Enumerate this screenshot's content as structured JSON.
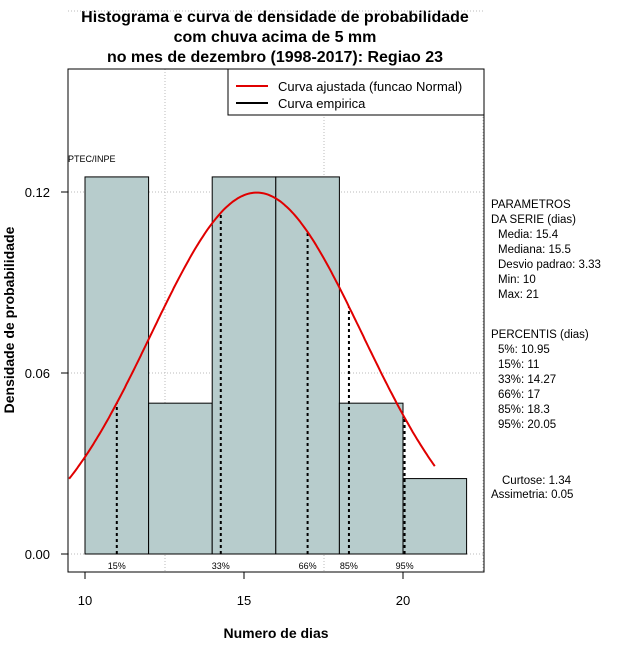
{
  "chart_data": {
    "type": "bar",
    "title": [
      "Histograma e curva de densidade de probabilidade",
      "com chuva acima de 5 mm",
      "no mes de dezembro (1998-2017): Regiao 23"
    ],
    "xlabel": "Numero de dias",
    "ylabel": "Densidade de probabilidade",
    "xlim": [
      9.5,
      22.5
    ],
    "ylim": [
      0,
      0.16
    ],
    "xticks": [
      10,
      15,
      20
    ],
    "xtick_labels": [
      "10",
      "15",
      "20"
    ],
    "yticks": [
      0,
      0.06,
      0.12
    ],
    "ytick_labels": [
      "0.00",
      "0.06",
      "0.12"
    ],
    "grid": true,
    "watermark": "PTEC/INPE",
    "bins": [
      {
        "x0": 10,
        "x1": 12,
        "density": 0.125
      },
      {
        "x0": 12,
        "x1": 14,
        "density": 0.05
      },
      {
        "x0": 14,
        "x1": 16,
        "density": 0.125
      },
      {
        "x0": 16,
        "x1": 18,
        "density": 0.125
      },
      {
        "x0": 18,
        "x1": 20,
        "density": 0.05
      },
      {
        "x0": 20,
        "x1": 22,
        "density": 0.025
      }
    ],
    "bar_color": "#b7cccc",
    "normal_fit": {
      "mean": 15.4,
      "sd": 3.33,
      "x_range": [
        9.5,
        21
      ],
      "color": "#e00000"
    },
    "percentile_lines": [
      {
        "label": "15%",
        "x": 11
      },
      {
        "label": "33%",
        "x": 14.27
      },
      {
        "label": "66%",
        "x": 17
      },
      {
        "label": "85%",
        "x": 18.3
      },
      {
        "label": "95%",
        "x": 20.05
      }
    ],
    "legend": {
      "position": "top-right",
      "entries": [
        {
          "label": "Curva ajustada (funcao Normal)",
          "color": "#e00000"
        },
        {
          "label": "Curva empirica",
          "color": "#000000"
        }
      ]
    }
  },
  "side_panel": {
    "params": [
      "PARAMETROS",
      "DA SERIE (dias)",
      "Media: 15.4",
      "Mediana: 15.5",
      "Desvio padrao: 3.33",
      "Min: 10",
      "Max: 21"
    ],
    "percentis": [
      "PERCENTIS (dias)",
      "5%: 10.95",
      "15%: 11",
      "33%: 14.27",
      "66%: 17",
      "85%: 18.3",
      "95%: 20.05"
    ],
    "stats": [
      "Curtose: 1.34",
      "Assimetria: 0.05"
    ]
  }
}
